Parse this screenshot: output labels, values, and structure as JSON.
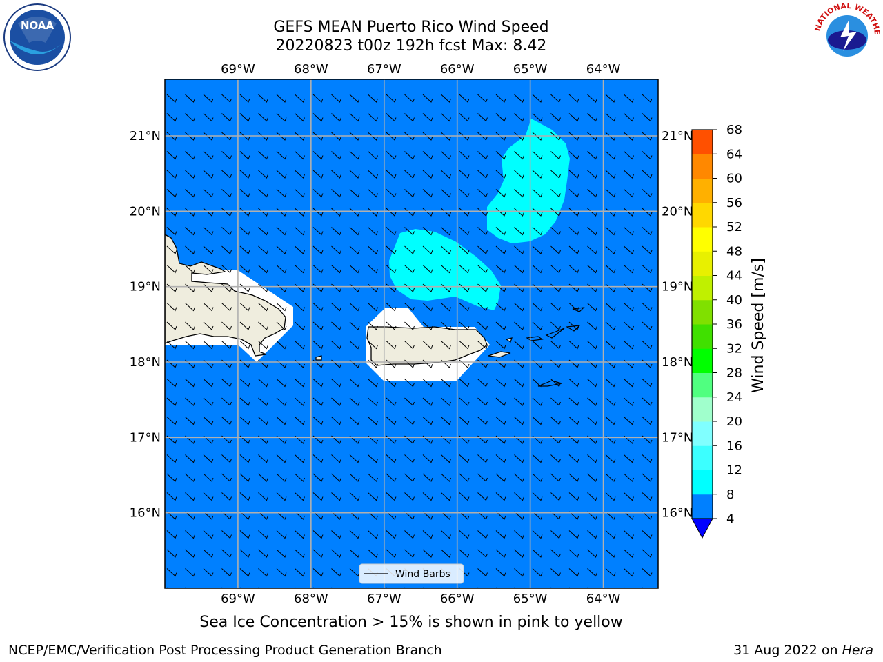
{
  "title": {
    "line1": "GEFS MEAN Puerto Rico Wind Speed",
    "line2": "20220823 t00z 192h fcst   Max: 8.42"
  },
  "map": {
    "lon_labels": [
      "69°W",
      "68°W",
      "67°W",
      "66°W",
      "65°W",
      "64°W"
    ],
    "lat_labels": [
      "21°N",
      "20°N",
      "19°N",
      "18°N",
      "17°N",
      "16°N"
    ],
    "lon_values": [
      -69,
      -68,
      -67,
      -66,
      -65,
      -64
    ],
    "lat_values": [
      21,
      20,
      19,
      18,
      17,
      16
    ],
    "extent": {
      "lon_min": -70,
      "lon_max": -63.25,
      "lat_min": 15,
      "lat_max": 21.75
    },
    "ocean_color": "#0080ff",
    "high_wind_color": "#00ffff",
    "land_color": "#efedde",
    "legend_label": "Wind Barbs"
  },
  "colorbar": {
    "label": "Wind Speed [m/s]",
    "ticks": [
      "4",
      "8",
      "12",
      "16",
      "20",
      "24",
      "28",
      "32",
      "36",
      "40",
      "44",
      "48",
      "52",
      "56",
      "60",
      "64",
      "68"
    ],
    "colors": [
      "#0080ff",
      "#00ffff",
      "#3cffff",
      "#80ffff",
      "#a0ffcc",
      "#50ff80",
      "#00ff00",
      "#40e000",
      "#80e000",
      "#c0f000",
      "#e8f000",
      "#ffff00",
      "#ffd800",
      "#ffb000",
      "#ff8800",
      "#ff5000",
      "#ff3000",
      "#ff0000"
    ],
    "under_color": "#0000ff"
  },
  "caption": "Sea Ice Concentration > 15% is shown in pink to yellow",
  "footer": {
    "left": "NCEP/EMC/Verification Post Processing Product Generation Branch",
    "right_date": "31 Aug 2022 on ",
    "right_machine": "Hera"
  },
  "logos": {
    "noaa_text": "NOAA",
    "nws_text": "NATIONAL WEATHER SERVICE"
  }
}
